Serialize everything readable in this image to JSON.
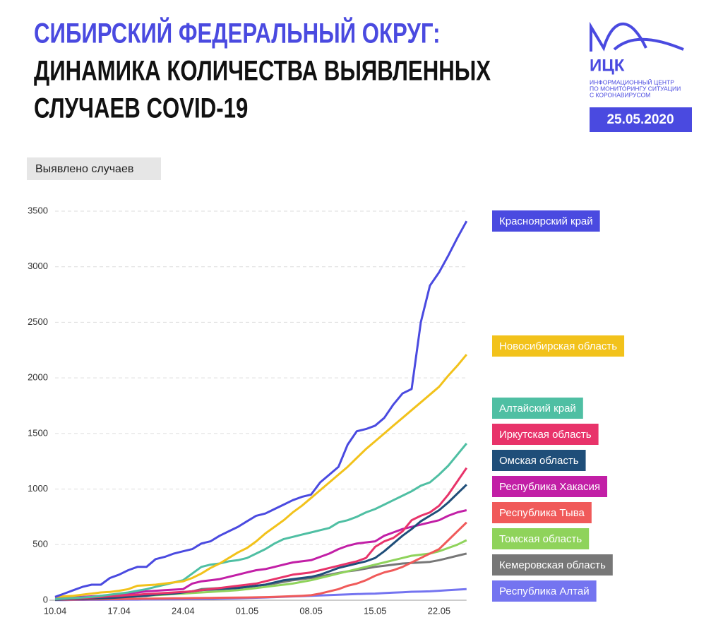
{
  "header": {
    "title_lines": [
      "СИБИРСКИЙ ФЕДЕРАЛЬНЫЙ ОКРУГ:",
      "ДИНАМИКА КОЛИЧЕСТВА ВЫЯВЛЕННЫХ",
      "СЛУЧАЕВ COVID-19"
    ],
    "logo": "ИЦК",
    "logo_caption": [
      "ИНФОРМАЦИОННЫЙ ЦЕНТР",
      "ПО МОНИТОРИНГУ СИТУАЦИИ",
      "С КОРОНАВИРУСОМ"
    ],
    "date": "25.05.2020"
  },
  "chart_data": {
    "type": "line",
    "y_label": "Выявлено случаев",
    "categories": [
      "10.04",
      null,
      null,
      null,
      null,
      null,
      null,
      "17.04",
      null,
      null,
      null,
      null,
      null,
      null,
      "24.04",
      null,
      null,
      null,
      null,
      null,
      null,
      "01.05",
      null,
      null,
      null,
      null,
      null,
      null,
      "08.05",
      null,
      null,
      null,
      null,
      null,
      null,
      "15.05",
      null,
      null,
      null,
      null,
      null,
      null,
      "22.05",
      null,
      null,
      null
    ],
    "ylim": [
      0,
      3500
    ],
    "yticks": [
      0,
      500,
      1000,
      1500,
      2000,
      2500,
      3000,
      3500
    ],
    "grid": true,
    "series": [
      {
        "name": "Красноярский край",
        "color": "#4a4ae0",
        "values": [
          30,
          60,
          90,
          120,
          140,
          140,
          200,
          230,
          270,
          300,
          300,
          370,
          390,
          420,
          440,
          460,
          510,
          530,
          580,
          620,
          660,
          710,
          760,
          780,
          820,
          860,
          900,
          930,
          950,
          1060,
          1130,
          1200,
          1400,
          1520,
          1540,
          1570,
          1640,
          1760,
          1860,
          1900,
          2500,
          2830,
          2950,
          3100,
          3260,
          3410
        ]
      },
      {
        "name": "Новосибирская область",
        "color": "#f2c21b",
        "values": [
          30,
          35,
          40,
          50,
          60,
          70,
          75,
          85,
          100,
          130,
          135,
          140,
          150,
          160,
          170,
          200,
          240,
          290,
          330,
          380,
          430,
          470,
          530,
          600,
          660,
          720,
          790,
          850,
          920,
          990,
          1060,
          1130,
          1200,
          1280,
          1360,
          1430,
          1500,
          1570,
          1640,
          1710,
          1780,
          1850,
          1920,
          2020,
          2110,
          2210
        ]
      },
      {
        "name": "Алтайский край",
        "color": "#4fbfa3",
        "values": [
          10,
          15,
          20,
          25,
          30,
          40,
          50,
          60,
          70,
          85,
          100,
          120,
          140,
          160,
          180,
          240,
          300,
          320,
          330,
          350,
          360,
          380,
          420,
          460,
          510,
          550,
          570,
          590,
          610,
          630,
          650,
          700,
          720,
          750,
          790,
          820,
          860,
          900,
          940,
          980,
          1030,
          1060,
          1130,
          1210,
          1310,
          1410
        ]
      },
      {
        "name": "Иркутская область",
        "color": "#e8336a",
        "values": [
          10,
          12,
          15,
          20,
          25,
          30,
          35,
          40,
          45,
          50,
          55,
          60,
          65,
          70,
          75,
          80,
          90,
          100,
          110,
          120,
          130,
          140,
          150,
          170,
          190,
          210,
          230,
          240,
          250,
          270,
          290,
          310,
          330,
          350,
          380,
          480,
          530,
          560,
          620,
          720,
          760,
          790,
          850,
          950,
          1070,
          1190
        ]
      },
      {
        "name": "Омская область",
        "color": "#1f4e79",
        "values": [
          5,
          8,
          10,
          12,
          15,
          18,
          20,
          25,
          30,
          35,
          40,
          50,
          55,
          60,
          70,
          80,
          90,
          95,
          100,
          105,
          110,
          120,
          130,
          140,
          160,
          180,
          190,
          200,
          210,
          230,
          260,
          290,
          310,
          330,
          350,
          380,
          440,
          510,
          580,
          640,
          710,
          760,
          810,
          880,
          960,
          1040
        ]
      },
      {
        "name": "Республика Хакасия",
        "color": "#c21fa6",
        "values": [
          15,
          20,
          25,
          30,
          35,
          40,
          45,
          50,
          60,
          70,
          80,
          85,
          90,
          95,
          100,
          150,
          170,
          180,
          190,
          210,
          230,
          250,
          270,
          280,
          300,
          320,
          340,
          350,
          360,
          390,
          420,
          460,
          490,
          510,
          520,
          530,
          580,
          610,
          640,
          660,
          680,
          700,
          720,
          760,
          790,
          810
        ]
      },
      {
        "name": "Республика Тыва",
        "color": "#f05a5a",
        "values": [
          5,
          5,
          6,
          7,
          8,
          9,
          10,
          11,
          12,
          13,
          14,
          15,
          16,
          17,
          18,
          19,
          20,
          21,
          22,
          23,
          24,
          25,
          26,
          28,
          30,
          33,
          36,
          40,
          45,
          60,
          80,
          100,
          130,
          150,
          180,
          220,
          250,
          270,
          300,
          340,
          380,
          420,
          460,
          540,
          620,
          700
        ]
      },
      {
        "name": "Томская область",
        "color": "#8fd35b",
        "values": [
          5,
          8,
          10,
          12,
          15,
          18,
          20,
          25,
          30,
          35,
          40,
          45,
          50,
          55,
          60,
          65,
          70,
          75,
          80,
          85,
          90,
          100,
          110,
          120,
          130,
          140,
          150,
          165,
          180,
          200,
          220,
          240,
          260,
          280,
          300,
          320,
          340,
          360,
          380,
          400,
          410,
          420,
          440,
          470,
          500,
          540
        ]
      },
      {
        "name": "Кемеровская область",
        "color": "#777777",
        "values": [
          15,
          17,
          19,
          21,
          23,
          25,
          28,
          30,
          35,
          40,
          45,
          50,
          55,
          60,
          70,
          80,
          100,
          105,
          110,
          112,
          115,
          120,
          130,
          140,
          150,
          165,
          180,
          190,
          200,
          215,
          230,
          245,
          260,
          270,
          285,
          300,
          310,
          320,
          330,
          335,
          340,
          345,
          360,
          380,
          400,
          420
        ]
      },
      {
        "name": "Республика Алтай",
        "color": "#7474f0",
        "values": [
          2,
          2,
          3,
          3,
          4,
          4,
          5,
          5,
          6,
          6,
          7,
          7,
          8,
          8,
          9,
          10,
          11,
          12,
          14,
          16,
          18,
          20,
          22,
          25,
          28,
          31,
          34,
          37,
          40,
          43,
          46,
          49,
          52,
          55,
          58,
          60,
          64,
          68,
          72,
          76,
          78,
          80,
          85,
          90,
          95,
          100
        ]
      }
    ]
  }
}
